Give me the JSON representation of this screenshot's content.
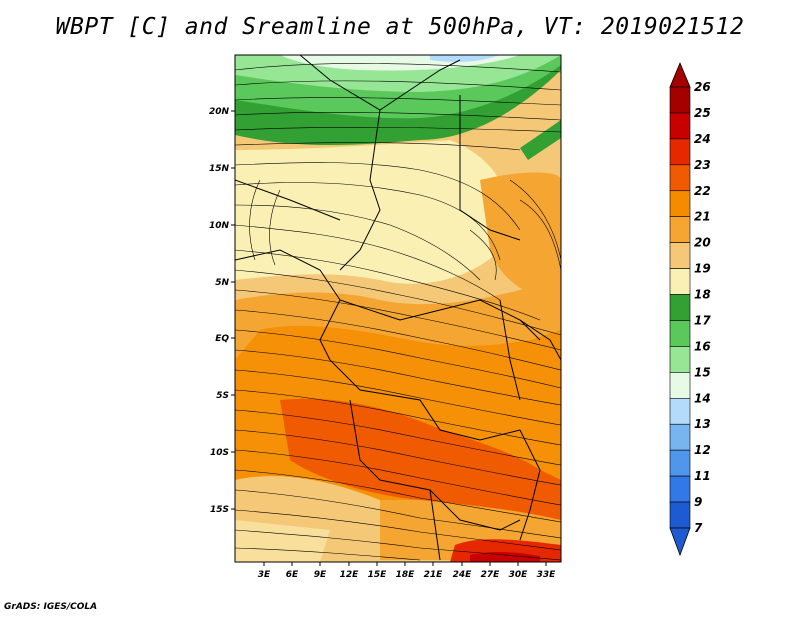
{
  "title": "WBPT [C] and Sreamline at 500hPa, VT: 2019021512",
  "credit": "GrADS: IGES/COLA",
  "map": {
    "lat_labels": [
      "20N",
      "15N",
      "10N",
      "5N",
      "EQ",
      "5S",
      "10S",
      "15S"
    ],
    "lon_labels": [
      "3E",
      "6E",
      "9E",
      "12E",
      "15E",
      "18E",
      "21E",
      "24E",
      "27E",
      "30E",
      "33E"
    ]
  },
  "colorbar": {
    "labels": [
      "26",
      "25",
      "24",
      "23",
      "22",
      "21",
      "20",
      "19",
      "18",
      "17",
      "16",
      "15",
      "14",
      "13",
      "12",
      "11",
      "9",
      "7"
    ],
    "colors": [
      "#a50000",
      "#c80000",
      "#e62800",
      "#f05a00",
      "#f58c00",
      "#f5a532",
      "#f5c878",
      "#faf0b4",
      "#32a032",
      "#5ac85a",
      "#96e696",
      "#e6fae6",
      "#b4dcfa",
      "#78b4f0",
      "#5096eb",
      "#3278e6",
      "#1e5ad2"
    ]
  }
}
